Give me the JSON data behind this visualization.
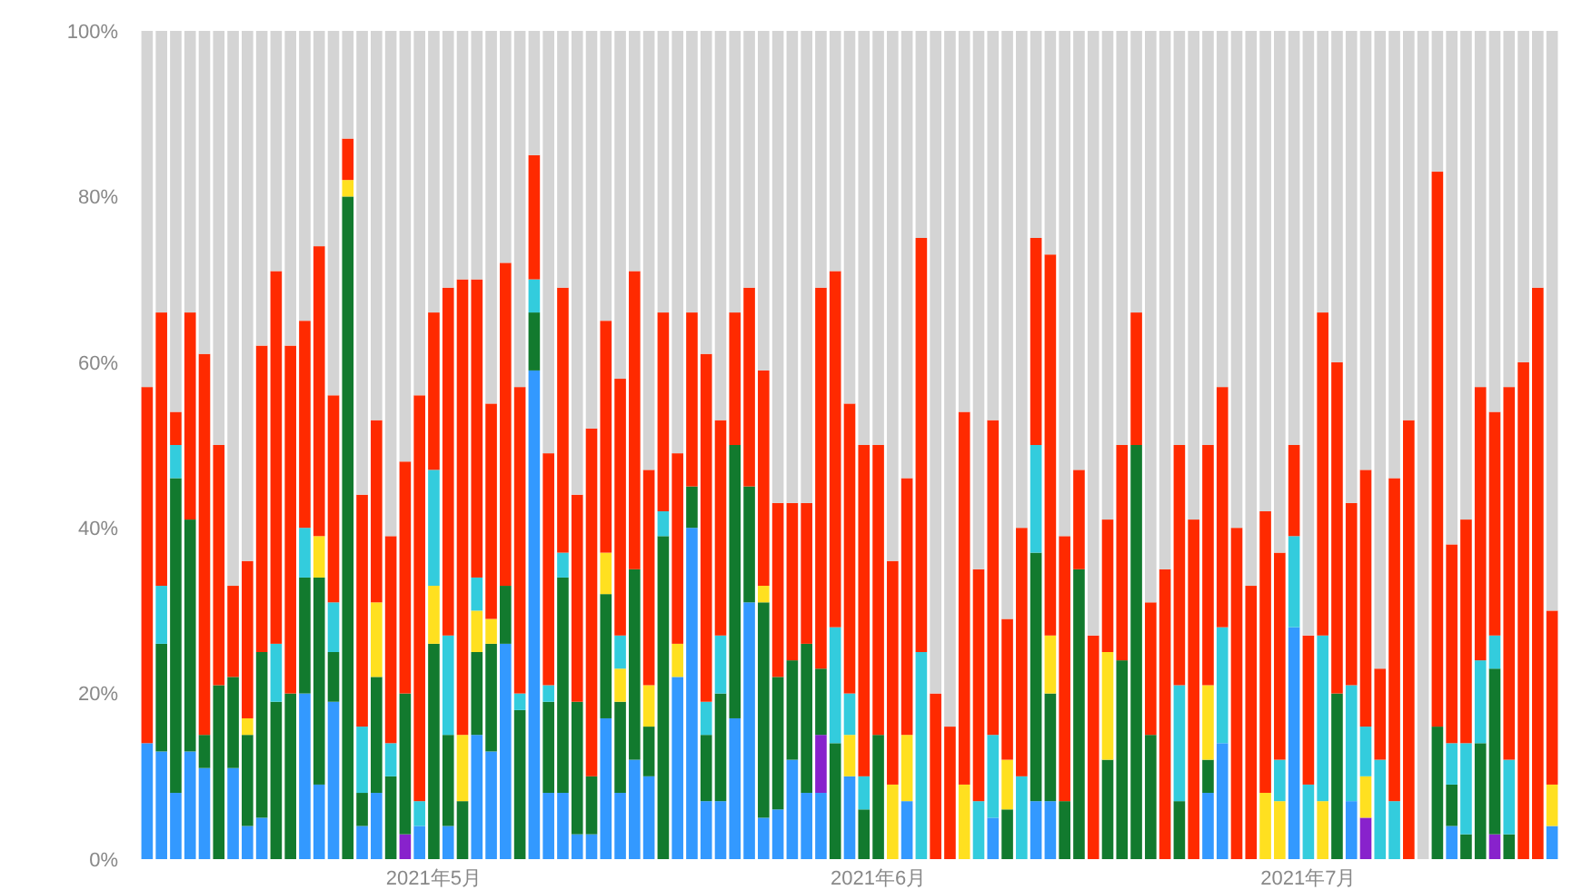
{
  "chart_data": {
    "type": "bar",
    "stacked": true,
    "x": [
      "2021-04-11",
      "2021-04-12",
      "2021-04-13",
      "2021-04-14",
      "2021-04-15",
      "2021-04-16",
      "2021-04-17",
      "2021-04-18",
      "2021-04-19",
      "2021-04-20",
      "2021-04-21",
      "2021-04-22",
      "2021-04-23",
      "2021-04-24",
      "2021-04-25",
      "2021-04-26",
      "2021-04-27",
      "2021-04-28",
      "2021-04-29",
      "2021-04-30",
      "2021-05-01",
      "2021-05-02",
      "2021-05-03",
      "2021-05-04",
      "2021-05-05",
      "2021-05-06",
      "2021-05-07",
      "2021-05-08",
      "2021-05-09",
      "2021-05-10",
      "2021-05-11",
      "2021-05-12",
      "2021-05-13",
      "2021-05-14",
      "2021-05-15",
      "2021-05-16",
      "2021-05-17",
      "2021-05-18",
      "2021-05-19",
      "2021-05-20",
      "2021-05-21",
      "2021-05-22",
      "2021-05-23",
      "2021-05-24",
      "2021-05-25",
      "2021-05-26",
      "2021-05-27",
      "2021-05-28",
      "2021-05-29",
      "2021-05-30",
      "2021-05-31",
      "2021-06-01",
      "2021-06-02",
      "2021-06-03",
      "2021-06-04",
      "2021-06-05",
      "2021-06-06",
      "2021-06-07",
      "2021-06-08",
      "2021-06-09",
      "2021-06-10",
      "2021-06-11",
      "2021-06-12",
      "2021-06-13",
      "2021-06-14",
      "2021-06-15",
      "2021-06-16",
      "2021-06-17",
      "2021-06-18",
      "2021-06-19",
      "2021-06-20",
      "2021-06-21",
      "2021-06-22",
      "2021-06-23",
      "2021-06-24",
      "2021-06-25",
      "2021-06-26",
      "2021-06-27",
      "2021-06-28",
      "2021-06-29",
      "2021-06-30",
      "2021-07-01",
      "2021-07-02",
      "2021-07-03",
      "2021-07-04",
      "2021-07-05",
      "2021-07-06",
      "2021-07-07",
      "2021-07-08",
      "2021-07-09",
      "2021-07-10",
      "2021-07-11",
      "2021-07-12",
      "2021-07-13",
      "2021-07-14",
      "2021-07-15",
      "2021-07-16",
      "2021-07-17",
      "2021-07-18"
    ],
    "xlim": [
      "2021-04-10T12:00",
      "2021-07-18T12:00"
    ],
    "xticks": [
      {
        "value": "2021-05-01",
        "label": "2021年5月"
      },
      {
        "value": "2021-06-01",
        "label": "2021年6月"
      },
      {
        "value": "2021-07-01",
        "label": "2021年7月"
      }
    ],
    "ylim": [
      0,
      100
    ],
    "yticks": [
      {
        "value": 0,
        "label": "0%"
      },
      {
        "value": 20,
        "label": "20%"
      },
      {
        "value": 40,
        "label": "40%"
      },
      {
        "value": 60,
        "label": "60%"
      },
      {
        "value": 80,
        "label": "80%"
      },
      {
        "value": 100,
        "label": "100%"
      }
    ],
    "series": [
      {
        "color": "#3399ff",
        "values": [
          14,
          13,
          8,
          13,
          11,
          0,
          11,
          4,
          5,
          0,
          0,
          20,
          9,
          19,
          0,
          4,
          8,
          0,
          0,
          4,
          0,
          4,
          0,
          15,
          13,
          26,
          0,
          59,
          8,
          8,
          3,
          3,
          17,
          8,
          12,
          10,
          0,
          22,
          40,
          7,
          7,
          17,
          31,
          5,
          6,
          12,
          8,
          8,
          0,
          10,
          0,
          0,
          0,
          7,
          0,
          0,
          0,
          0,
          0,
          5,
          0,
          0,
          7,
          7,
          0,
          0,
          0,
          0,
          0,
          0,
          0,
          0,
          0,
          0,
          8,
          14,
          0,
          0,
          0,
          0,
          28,
          0,
          0,
          0,
          7,
          0,
          0,
          0,
          0,
          0,
          0,
          4,
          0,
          0,
          0,
          0,
          0,
          0,
          4
        ]
      },
      {
        "color": "#8822cc",
        "values": [
          0,
          0,
          0,
          0,
          0,
          0,
          0,
          0,
          0,
          0,
          0,
          0,
          0,
          0,
          0,
          0,
          0,
          0,
          3,
          0,
          0,
          0,
          0,
          0,
          0,
          0,
          0,
          0,
          0,
          0,
          0,
          0,
          0,
          0,
          0,
          0,
          0,
          0,
          0,
          0,
          0,
          0,
          0,
          0,
          0,
          0,
          0,
          7,
          0,
          0,
          0,
          0,
          0,
          0,
          0,
          0,
          0,
          0,
          0,
          0,
          0,
          0,
          0,
          0,
          0,
          0,
          0,
          0,
          0,
          0,
          0,
          0,
          0,
          0,
          0,
          0,
          0,
          0,
          0,
          0,
          0,
          0,
          0,
          0,
          0,
          5,
          0,
          0,
          0,
          0,
          0,
          0,
          0,
          0,
          3,
          0,
          0,
          0,
          0
        ]
      },
      {
        "color": "#127a2e",
        "values": [
          0,
          13,
          38,
          28,
          4,
          21,
          11,
          11,
          20,
          19,
          20,
          14,
          25,
          6,
          80,
          4,
          14,
          10,
          17,
          0,
          26,
          11,
          7,
          10,
          13,
          7,
          18,
          7,
          11,
          26,
          16,
          7,
          15,
          11,
          23,
          6,
          39,
          0,
          5,
          8,
          13,
          33,
          14,
          26,
          16,
          12,
          18,
          8,
          14,
          0,
          6,
          15,
          0,
          0,
          0,
          0,
          0,
          0,
          0,
          0,
          6,
          0,
          30,
          13,
          7,
          35,
          0,
          12,
          24,
          50,
          15,
          0,
          7,
          0,
          4,
          0,
          0,
          0,
          0,
          0,
          0,
          0,
          0,
          20,
          0,
          0,
          0,
          0,
          0,
          0,
          16,
          5,
          3,
          14,
          20,
          3,
          0,
          0,
          0
        ]
      },
      {
        "color": "#ffe020",
        "values": [
          0,
          0,
          0,
          0,
          0,
          0,
          0,
          2,
          0,
          0,
          0,
          0,
          5,
          0,
          2,
          0,
          9,
          0,
          0,
          0,
          7,
          0,
          8,
          5,
          3,
          0,
          0,
          0,
          0,
          0,
          0,
          0,
          5,
          4,
          0,
          5,
          0,
          4,
          0,
          0,
          0,
          0,
          0,
          2,
          0,
          0,
          0,
          0,
          0,
          5,
          0,
          0,
          9,
          8,
          0,
          0,
          0,
          9,
          0,
          0,
          6,
          0,
          0,
          7,
          0,
          0,
          0,
          13,
          0,
          0,
          0,
          0,
          0,
          0,
          9,
          0,
          0,
          0,
          8,
          7,
          0,
          0,
          7,
          0,
          0,
          5,
          0,
          0,
          0,
          0,
          0,
          0,
          0,
          0,
          0,
          0,
          0,
          0,
          5
        ]
      },
      {
        "color": "#33ccdd",
        "values": [
          0,
          7,
          4,
          0,
          0,
          0,
          0,
          0,
          0,
          7,
          0,
          6,
          0,
          6,
          0,
          8,
          0,
          4,
          0,
          3,
          14,
          12,
          0,
          4,
          0,
          0,
          2,
          4,
          2,
          3,
          0,
          0,
          0,
          4,
          0,
          0,
          3,
          0,
          0,
          4,
          7,
          0,
          0,
          0,
          0,
          0,
          0,
          0,
          14,
          5,
          4,
          0,
          0,
          0,
          25,
          0,
          0,
          0,
          7,
          10,
          0,
          10,
          13,
          0,
          0,
          0,
          0,
          0,
          0,
          0,
          0,
          0,
          14,
          0,
          0,
          14,
          0,
          0,
          0,
          5,
          11,
          9,
          20,
          0,
          14,
          6,
          12,
          7,
          0,
          0,
          0,
          5,
          11,
          10,
          4,
          9,
          0,
          0,
          0
        ]
      },
      {
        "color": "#ff2a00",
        "values": [
          43,
          33,
          4,
          25,
          46,
          29,
          11,
          19,
          37,
          45,
          42,
          25,
          35,
          25,
          5,
          28,
          22,
          25,
          28,
          49,
          19,
          42,
          55,
          36,
          26,
          39,
          37,
          15,
          28,
          32,
          25,
          42,
          28,
          31,
          36,
          26,
          24,
          23,
          21,
          42,
          26,
          16,
          24,
          26,
          21,
          19,
          17,
          46,
          43,
          35,
          40,
          35,
          27,
          31,
          50,
          20,
          16,
          45,
          28,
          38,
          17,
          30,
          25,
          46,
          32,
          12,
          27,
          16,
          26,
          16,
          16,
          35,
          29,
          41,
          29,
          29,
          40,
          33,
          34,
          25,
          11,
          18,
          39,
          40,
          22,
          31,
          11,
          39,
          53,
          0,
          67,
          24,
          27,
          33,
          27,
          45,
          60,
          69,
          21
        ]
      },
      {
        "color": "#d4d4d4",
        "values": [
          43,
          34,
          46,
          34,
          39,
          50,
          67,
          64,
          38,
          29,
          38,
          35,
          26,
          44,
          13,
          56,
          47,
          61,
          52,
          44,
          34,
          31,
          30,
          30,
          45,
          28,
          43,
          15,
          51,
          31,
          56,
          48,
          35,
          42,
          29,
          53,
          34,
          51,
          34,
          39,
          47,
          34,
          31,
          41,
          57,
          57,
          57,
          31,
          29,
          45,
          50,
          50,
          64,
          54,
          25,
          80,
          84,
          46,
          65,
          47,
          71,
          60,
          25,
          27,
          61,
          53,
          73,
          59,
          50,
          34,
          69,
          65,
          50,
          59,
          50,
          43,
          60,
          67,
          58,
          63,
          50,
          73,
          34,
          40,
          57,
          53,
          77,
          54,
          47,
          100,
          17,
          62,
          59,
          43,
          46,
          43,
          40,
          31,
          70
        ]
      }
    ]
  }
}
